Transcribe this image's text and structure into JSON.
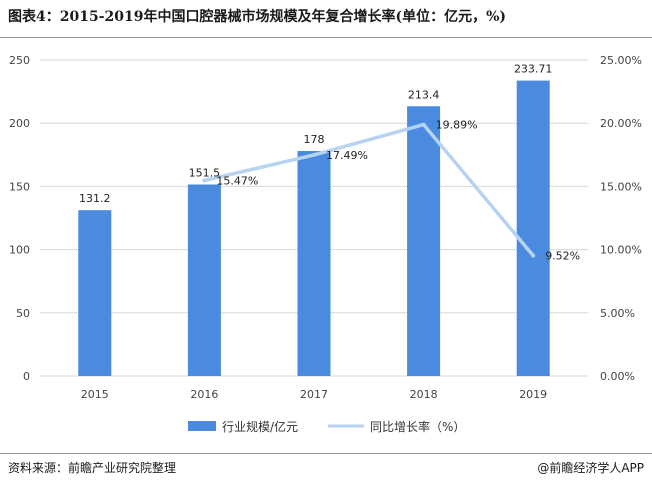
{
  "title": "图表4：2015-2019年中国口腔器械市场规模及年复合增长率(单位：亿元，%)",
  "footer": {
    "source": "资料来源：前瞻产业研究院整理",
    "brand": "@前瞻经济学人APP"
  },
  "chart_data": {
    "type": "bar",
    "categories": [
      "2015",
      "2016",
      "2017",
      "2018",
      "2019"
    ],
    "series": [
      {
        "name": "行业规模/亿元",
        "type": "bar",
        "axis": "left",
        "values": [
          131.2,
          151.5,
          178,
          213.4,
          233.71
        ],
        "labels": [
          "131.2",
          "151.5",
          "178",
          "213.4",
          "233.71"
        ],
        "color": "#4a8be0"
      },
      {
        "name": "同比增长率（%）",
        "type": "line",
        "axis": "right",
        "values": [
          null,
          15.47,
          17.49,
          19.89,
          9.52
        ],
        "labels": [
          "",
          "15.47%",
          "17.49%",
          "19.89%",
          "9.52%"
        ],
        "color": "#b7d3f2"
      }
    ],
    "y_left": {
      "min": 0,
      "max": 250,
      "ticks": [
        "0",
        "50",
        "100",
        "150",
        "200",
        "250"
      ]
    },
    "y_right": {
      "min": 0,
      "max": 25,
      "ticks": [
        "0.00%",
        "5.00%",
        "10.00%",
        "15.00%",
        "20.00%",
        "25.00%"
      ]
    },
    "legend_position": "bottom",
    "grid": true
  }
}
